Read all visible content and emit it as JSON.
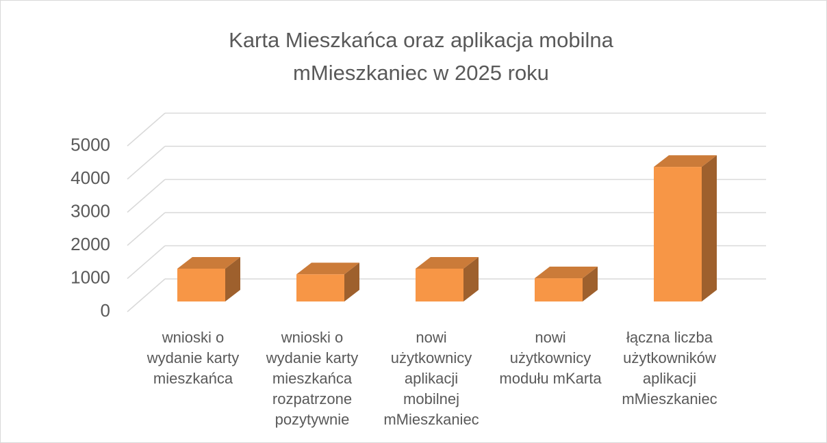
{
  "chart_data": {
    "type": "bar3d",
    "title": "Karta Mieszkańca oraz aplikacja mobilna mMieszkaniec w 2025 roku",
    "categories": [
      "wnioski o wydanie karty mieszkańca",
      "wnioski o wydanie karty mieszkańca rozpatrzone pozytywnie",
      "nowi użytkownicy aplikacji mobilnej mMieszkaniec",
      "nowi użytkownicy modułu mKarta",
      "łączna liczba użytkowników aplikacji mMieszkaniec"
    ],
    "values": [
      990,
      820,
      990,
      700,
      4060
    ],
    "color": "#f79646",
    "ylim": [
      0,
      5000
    ],
    "yticks": [
      0,
      1000,
      2000,
      3000,
      4000,
      5000
    ],
    "grid": true
  }
}
